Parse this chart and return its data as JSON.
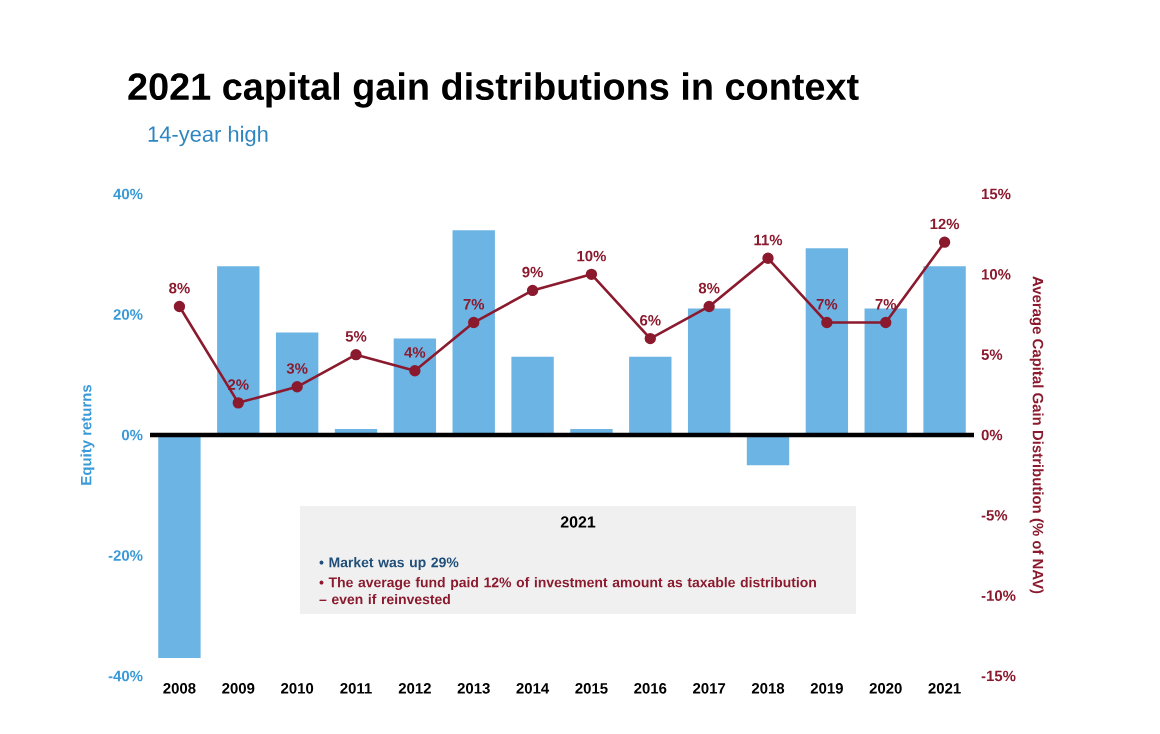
{
  "chart_data": {
    "type": "bar",
    "title": "2021 capital gain distributions in context",
    "subtitle": "14-year high",
    "ylabel": "Equity returns",
    "y2label": "Average Capital Gain Distribution (% of NAV)",
    "categories": [
      "2008",
      "2009",
      "2010",
      "2011",
      "2012",
      "2013",
      "2014",
      "2015",
      "2016",
      "2017",
      "2018",
      "2019",
      "2020",
      "2021"
    ],
    "series": [
      {
        "color": "#6cb4e4",
        "values": [
          -37,
          28,
          17,
          1,
          16,
          34,
          13,
          1,
          13,
          21,
          -5,
          31,
          21,
          28
        ]
      },
      {
        "type": "line",
        "axis": "y2",
        "color": "#8b1a2e",
        "values": [
          8,
          2,
          3,
          5,
          4,
          7,
          9,
          10,
          6,
          8,
          11,
          7,
          7,
          12
        ],
        "value_labels": [
          "8%",
          "2%",
          "3%",
          "5%",
          "4%",
          "7%",
          "9%",
          "10%",
          "6%",
          "8%",
          "11%",
          "7%",
          "7%",
          "12%"
        ]
      }
    ],
    "marker": "circle",
    "ylim": [
      -40,
      40
    ],
    "yticks": [
      {
        "value": -40,
        "label": "-40%"
      },
      {
        "value": -20,
        "label": "-20%"
      },
      {
        "value": 0,
        "label": "0%"
      },
      {
        "value": 20,
        "label": "20%"
      },
      {
        "value": 40,
        "label": "40%"
      }
    ],
    "y2lim": [
      -15,
      15
    ],
    "y2ticks": [
      {
        "value": -15,
        "label": "-15%"
      },
      {
        "value": -10,
        "label": "-10%"
      },
      {
        "value": -5,
        "label": "-5%"
      },
      {
        "value": 0,
        "label": "0%"
      },
      {
        "value": 5,
        "label": "5%"
      },
      {
        "value": 10,
        "label": "10%"
      },
      {
        "value": 15,
        "label": "15%"
      }
    ],
    "annotations": [
      "2021",
      "• Market was up 29%",
      "• The average fund paid 12% of investment amount as taxable distribution – even if reinvested"
    ]
  }
}
